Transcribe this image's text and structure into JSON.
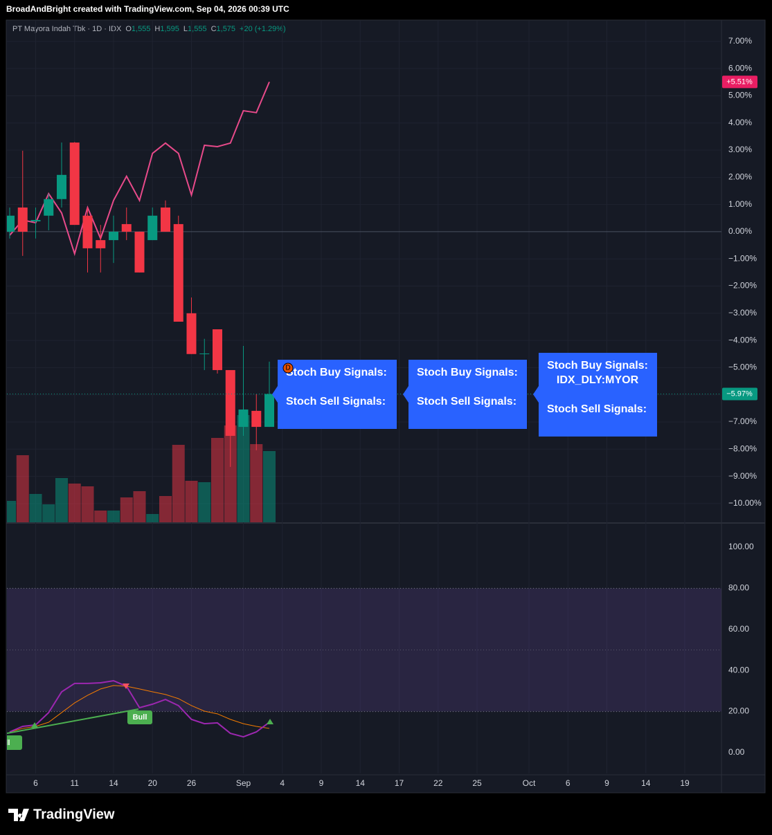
{
  "header": {
    "caption": "BroadAndBright created with TradingView.com, Sep 04, 2026 00:39 UTC",
    "legend": {
      "symbol": "PT Mayora Indah Tbk · 1D · IDX",
      "fields": [
        [
          "O",
          "1,555"
        ],
        [
          "H",
          "1,595"
        ],
        [
          "L",
          "1,555"
        ],
        [
          "C",
          "1,575"
        ]
      ],
      "change": "+20 (+1.29%)"
    }
  },
  "footer": {
    "brand": "TradingView"
  },
  "chart_data": [
    {
      "type": "candlestick",
      "categories": [
        null,
        null,
        "6",
        null,
        null,
        "11",
        null,
        null,
        "14",
        null,
        null,
        "20",
        null,
        null,
        "26",
        null,
        null,
        null,
        "Sep",
        null,
        null,
        "4",
        null,
        null,
        "9",
        null,
        null,
        "14",
        null,
        null,
        "17",
        null,
        null,
        "22",
        null,
        null,
        "25",
        null,
        null,
        null,
        "Oct",
        null,
        null,
        "6",
        null,
        null,
        "9",
        null,
        null,
        "14",
        null,
        null,
        "19",
        null,
        null
      ],
      "open": [
        0,
        0.89,
        0.38,
        0.59,
        1.2,
        3.28,
        0.59,
        -0.31,
        -0.31,
        0.28,
        0,
        -0.31,
        0.89,
        0.28,
        -3.0,
        -4.5,
        -3.59,
        -5.09,
        -7.18,
        -6.59,
        -7.18,
        null,
        null,
        null,
        null,
        null,
        null,
        null,
        null,
        null,
        null,
        null,
        null,
        null,
        null,
        null,
        null,
        null,
        null,
        null,
        null,
        null,
        null,
        null,
        null,
        null,
        null,
        null,
        null,
        null,
        null,
        null,
        null,
        null,
        null
      ],
      "high": [
        0.89,
        2.98,
        0.89,
        1.4,
        3.28,
        3.3,
        0.89,
        0.25,
        0.59,
        0.89,
        0,
        0.89,
        1.15,
        0.59,
        -2.42,
        -3.94,
        -3.59,
        -5.09,
        -4.2,
        -5.98,
        -4.78,
        null,
        null,
        null,
        null,
        null,
        null,
        null,
        null,
        null,
        null,
        null,
        null,
        null,
        null,
        null,
        null,
        null,
        null,
        null,
        null,
        null,
        null,
        null,
        null,
        null,
        null,
        null,
        null,
        null,
        null,
        null,
        null,
        null,
        null
      ],
      "low": [
        -0.25,
        -0.89,
        -0.25,
        0.05,
        0.89,
        0.25,
        -1.5,
        -1.5,
        -1.15,
        -0.31,
        -1.5,
        -0.31,
        0,
        -3.31,
        -4.5,
        -5.09,
        -5.22,
        -8.65,
        -7.51,
        -8.04,
        -7.18,
        null,
        null,
        null,
        null,
        null,
        null,
        null,
        null,
        null,
        null,
        null,
        null,
        null,
        null,
        null,
        null,
        null,
        null,
        null,
        null,
        null,
        null,
        null,
        null,
        null,
        null,
        null,
        null,
        null,
        null,
        null,
        null,
        null,
        null
      ],
      "close": [
        0.59,
        0,
        0.43,
        1.2,
        2.09,
        0.25,
        -0.61,
        -0.61,
        0,
        0,
        -1.5,
        0.59,
        0,
        -3.31,
        -4.5,
        -4.48,
        -5.09,
        -7.51,
        -6.54,
        -7.18,
        -5.97,
        null,
        null,
        null,
        null,
        null,
        null,
        null,
        null,
        null,
        null,
        null,
        null,
        null,
        null,
        null,
        null,
        null,
        null,
        null,
        null,
        null,
        null,
        null,
        null,
        null,
        null,
        null,
        null,
        null,
        null,
        null,
        null,
        null,
        null
      ],
      "volume": [
        31,
        97,
        41,
        26,
        64,
        56,
        52,
        17,
        17,
        36,
        45,
        12,
        38,
        112,
        60,
        58,
        122,
        140,
        155,
        113,
        103,
        null,
        null,
        null,
        null,
        null,
        null,
        null,
        null,
        null,
        null,
        null,
        null,
        null,
        null,
        null,
        null,
        null,
        null,
        null,
        null,
        null,
        null,
        null,
        null,
        null,
        null,
        null,
        null,
        null,
        null,
        null,
        null,
        null,
        null
      ],
      "up_color": "#089981",
      "down_color": "#f23645",
      "last_label": "−5.97%",
      "compare": {
        "color": "#e84a8a",
        "last_label": "+5.51%",
        "values": [
          -0.13,
          0.43,
          0.33,
          1.4,
          0.69,
          -0.81,
          0.89,
          -0.25,
          1.15,
          2.04,
          1.15,
          2.88,
          3.26,
          2.88,
          1.35,
          3.18,
          3.13,
          3.26,
          4.45,
          4.38,
          5.51,
          null,
          null,
          null,
          null,
          null,
          null,
          null,
          null,
          null,
          null,
          null,
          null,
          null,
          null,
          null,
          null,
          null,
          null,
          null,
          null,
          null,
          null,
          null,
          null,
          null,
          null,
          null,
          null,
          null,
          null,
          null,
          null,
          null,
          null
        ]
      },
      "ylim": [
        -10.69,
        7.76
      ],
      "yticks": [
        {
          "value": 7,
          "label": "7.00%"
        },
        {
          "value": 6,
          "label": "6.00%"
        },
        {
          "value": 5,
          "label": "5.00%"
        },
        {
          "value": 4,
          "label": "4.00%"
        },
        {
          "value": 3,
          "label": "3.00%"
        },
        {
          "value": 2,
          "label": "2.00%"
        },
        {
          "value": 1,
          "label": "1.00%"
        },
        {
          "value": 0,
          "label": "0.00%"
        },
        {
          "value": -1,
          "label": "−1.00%"
        },
        {
          "value": -2,
          "label": "−2.00%"
        },
        {
          "value": -3,
          "label": "−3.00%"
        },
        {
          "value": -4,
          "label": "−4.00%"
        },
        {
          "value": -5,
          "label": "−5.00%"
        },
        {
          "value": -6,
          "label": "−6.00%"
        },
        {
          "value": -7,
          "label": "−7.00%"
        },
        {
          "value": -8,
          "label": "−8.00%"
        },
        {
          "value": -9,
          "label": "−9.00%"
        },
        {
          "value": -10,
          "label": "−10.00%"
        }
      ],
      "grid": true,
      "annotations": {
        "marker": "D",
        "boxes": [
          [
            "Stoch Buy Signals:",
            "Stoch Sell Signals:"
          ],
          [
            "Stoch Buy Signals:",
            "Stoch Sell Signals:"
          ],
          [
            "Stoch Buy Signals:",
            "IDX_DLY:MYOR",
            "Stoch Sell Signals:"
          ]
        ]
      }
    },
    {
      "type": "stochastic",
      "k": {
        "color": "#9c27b0",
        "values": [
          10.1,
          12.8,
          13.5,
          19.5,
          29.6,
          33.7,
          33.7,
          34.0,
          35.0,
          32.3,
          21.9,
          23.6,
          25.9,
          22.9,
          16.2,
          14.1,
          14.5,
          9.4,
          7.7,
          10.1,
          14.8,
          null,
          null,
          null,
          null,
          null,
          null,
          null,
          null,
          null,
          null,
          null,
          null,
          null,
          null,
          null,
          null,
          null,
          null,
          null,
          null,
          null,
          null,
          null,
          null,
          null,
          null,
          null,
          null,
          null,
          null,
          null,
          null,
          null,
          null
        ]
      },
      "d": {
        "color": "#f57c00",
        "values": [
          10.1,
          11.8,
          12.8,
          14.8,
          19.5,
          24.2,
          27.9,
          31.0,
          32.7,
          32.3,
          31.0,
          29.6,
          28.3,
          26.3,
          22.9,
          20.2,
          18.9,
          16.2,
          14.1,
          12.8,
          11.8,
          null,
          null,
          null,
          null,
          null,
          null,
          null,
          null,
          null,
          null,
          null,
          null,
          null,
          null,
          null,
          null,
          null,
          null,
          null,
          null,
          null,
          null,
          null,
          null,
          null,
          null,
          null,
          null,
          null,
          null,
          null,
          null,
          null,
          null
        ]
      },
      "band": [
        20,
        80
      ],
      "midline": 50,
      "ylim": [
        -10.1,
        110.4
      ],
      "yticks": [
        {
          "value": 100,
          "label": "100.00"
        },
        {
          "value": 80,
          "label": "80.00"
        },
        {
          "value": 60,
          "label": "60.00"
        },
        {
          "value": 40,
          "label": "40.00"
        },
        {
          "value": 20,
          "label": "20.00"
        },
        {
          "value": 0,
          "label": "0.00"
        }
      ],
      "annotations": [
        "Bull",
        "Bull"
      ]
    }
  ]
}
